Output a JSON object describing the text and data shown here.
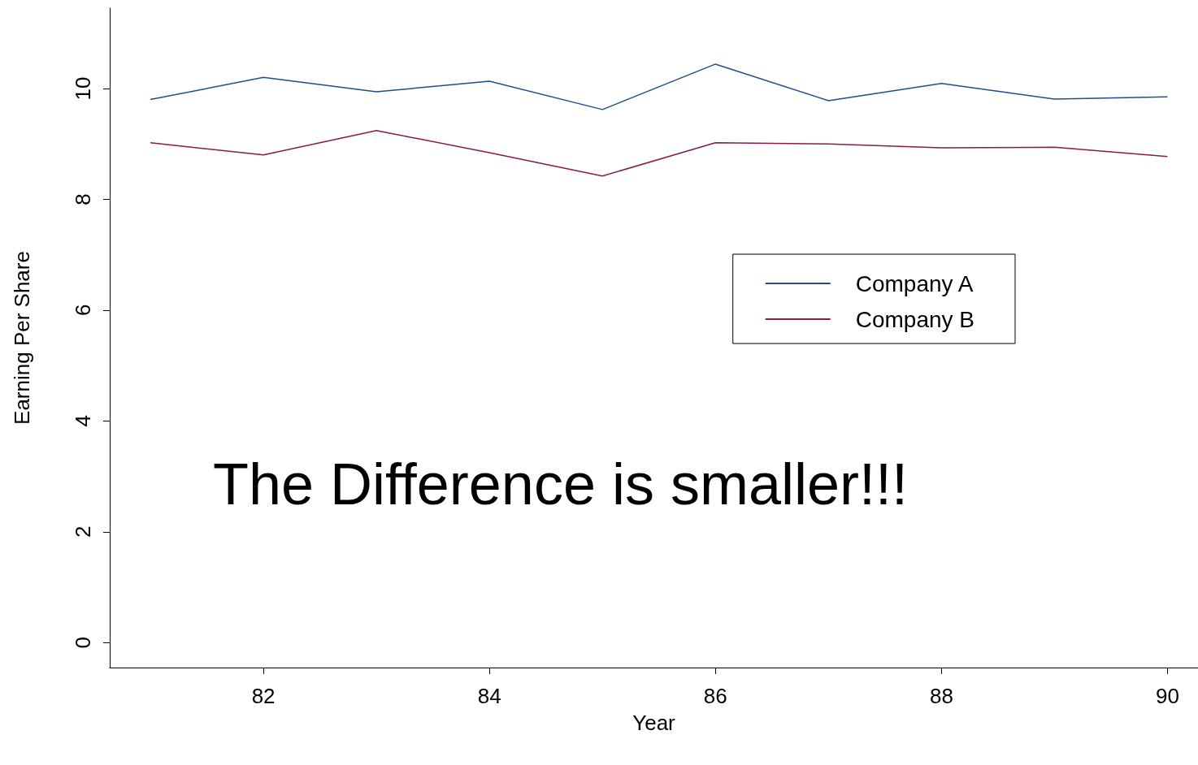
{
  "chart_data": {
    "type": "line",
    "xlabel": "Year",
    "ylabel": "Earning Per Share",
    "x": [
      81,
      82,
      83,
      84,
      85,
      86,
      87,
      88,
      89,
      90
    ],
    "series": [
      {
        "name": "Company A",
        "color": "#1f4e8c",
        "values": [
          9.8,
          10.2,
          9.94,
          10.13,
          9.62,
          10.44,
          9.78,
          10.09,
          9.81,
          9.85
        ]
      },
      {
        "name": "Company B",
        "color": "#8b1a4a",
        "values": [
          9.02,
          8.8,
          9.24,
          8.84,
          8.42,
          9.02,
          9.0,
          8.93,
          8.94,
          8.77
        ]
      }
    ],
    "xlim": [
      80.64,
      90.27
    ],
    "xticks": [
      82,
      84,
      86,
      88,
      90
    ],
    "ylim": [
      -0.45,
      11.45
    ],
    "yticks": [
      0,
      2,
      4,
      6,
      8,
      10
    ],
    "annotations": [
      "The Difference is smaller!!!"
    ],
    "legend": "top right",
    "grid": false,
    "marker": "none",
    "line_style": "solid"
  }
}
